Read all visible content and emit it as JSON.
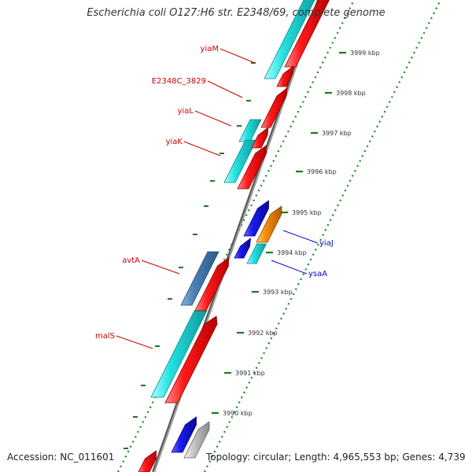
{
  "title": "Escherichia coli O127:H6 str. E2348/69, complete genome",
  "footer": {
    "accession": "Accession: NC_011601",
    "summary": "Topology: circular; Length: 4,965,553 bp; Genes: 4,739"
  },
  "ticks": [
    "3999 kbp",
    "3998 kbp",
    "3997 kbp",
    "3996 kbp",
    "3995 kbp",
    "3994 kbp",
    "3993 kbp",
    "3992 kbp",
    "3991 kbp",
    "3990 kbp"
  ],
  "colors": {
    "cds_red": "#ee1111",
    "cds_cyan": "#22d2d2",
    "cds_blue": "#1a1ae6",
    "cds_orange": "#f08a10",
    "cds_steel": "#4a7fb0",
    "cds_grey": "#c0c0c0",
    "backbone": "#8c8c8c",
    "scale_dots": "#1a8a1a",
    "label_red": "#cc0000",
    "label_blue": "#0000cc"
  },
  "gene_labels": [
    {
      "name": "yiaM",
      "strand": "left"
    },
    {
      "name": "E2348C_3829",
      "strand": "left"
    },
    {
      "name": "yiaL",
      "strand": "left"
    },
    {
      "name": "yiaK",
      "strand": "left"
    },
    {
      "name": "avtA",
      "strand": "left"
    },
    {
      "name": "malS",
      "strand": "left"
    },
    {
      "name": "yiaJ",
      "strand": "right"
    },
    {
      "name": "ysaA",
      "strand": "right"
    }
  ]
}
